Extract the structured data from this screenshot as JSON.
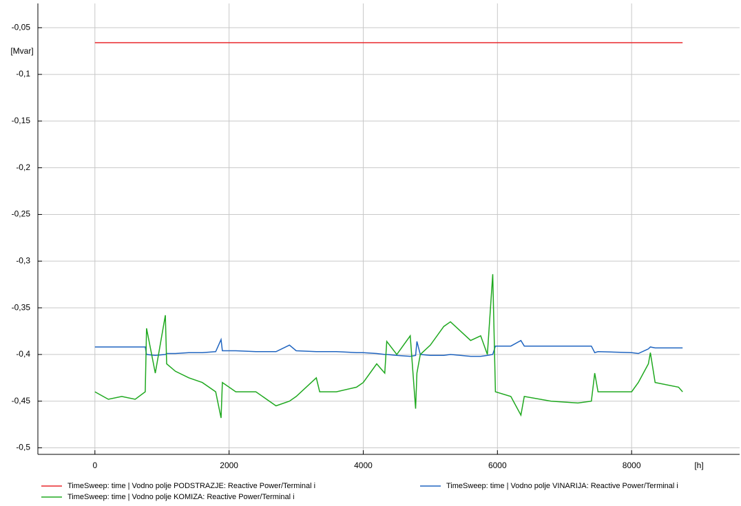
{
  "chart_data": {
    "type": "line",
    "x_label": "[h]",
    "y_label": "[Mvar]",
    "x": [
      0,
      200,
      400,
      600,
      750,
      770,
      900,
      1050,
      1070,
      1200,
      1400,
      1600,
      1800,
      1880,
      1900,
      2100,
      2400,
      2700,
      2900,
      3000,
      3300,
      3350,
      3600,
      3900,
      4000,
      4200,
      4320,
      4350,
      4500,
      4700,
      4780,
      4800,
      4850,
      5000,
      5200,
      5300,
      5600,
      5750,
      5850,
      5930,
      5970,
      6200,
      6350,
      6400,
      6800,
      7200,
      7400,
      7450,
      7500,
      8000,
      8100,
      8250,
      8280,
      8350,
      8700,
      8760
    ],
    "series": [
      {
        "name": "TimeSweep: time | Vodno polje PODSTRAZJE: Reactive Power/Terminal i",
        "color": "#e8262a",
        "values": [
          -0.066,
          -0.066,
          -0.066,
          -0.066,
          -0.066,
          -0.066,
          -0.066,
          -0.066,
          -0.066,
          -0.066,
          -0.066,
          -0.066,
          -0.066,
          -0.066,
          -0.066,
          -0.066,
          -0.066,
          -0.066,
          -0.066,
          -0.066,
          -0.066,
          -0.066,
          -0.066,
          -0.066,
          -0.066,
          -0.066,
          -0.066,
          -0.066,
          -0.066,
          -0.066,
          -0.066,
          -0.066,
          -0.066,
          -0.066,
          -0.066,
          -0.066,
          -0.066,
          -0.066,
          -0.066,
          -0.066,
          -0.066,
          -0.066,
          -0.066,
          -0.066,
          -0.066,
          -0.066,
          -0.066,
          -0.066,
          -0.066,
          -0.066,
          -0.066,
          -0.066,
          -0.066,
          -0.066,
          -0.066,
          -0.066
        ]
      },
      {
        "name": "TimeSweep: time | Vodno polje VINARIJA: Reactive Power/Terminal i",
        "color": "#1f64c0",
        "values": [
          -0.392,
          -0.392,
          -0.392,
          -0.392,
          -0.392,
          -0.4,
          -0.401,
          -0.4,
          -0.399,
          -0.399,
          -0.398,
          -0.398,
          -0.397,
          -0.384,
          -0.396,
          -0.396,
          -0.397,
          -0.397,
          -0.39,
          -0.396,
          -0.397,
          -0.397,
          -0.397,
          -0.398,
          -0.398,
          -0.399,
          -0.4,
          -0.4,
          -0.401,
          -0.402,
          -0.401,
          -0.386,
          -0.4,
          -0.401,
          -0.401,
          -0.4,
          -0.402,
          -0.402,
          -0.401,
          -0.4,
          -0.391,
          -0.391,
          -0.385,
          -0.391,
          -0.391,
          -0.391,
          -0.391,
          -0.398,
          -0.397,
          -0.398,
          -0.399,
          -0.394,
          -0.392,
          -0.393,
          -0.393,
          -0.393
        ]
      },
      {
        "name": "TimeSweep: time | Vodno polje KOMIZA: Reactive Power/Terminal i",
        "color": "#1ea81e",
        "values": [
          -0.44,
          -0.448,
          -0.445,
          -0.448,
          -0.44,
          -0.372,
          -0.42,
          -0.358,
          -0.41,
          -0.418,
          -0.425,
          -0.43,
          -0.44,
          -0.468,
          -0.43,
          -0.44,
          -0.44,
          -0.455,
          -0.45,
          -0.445,
          -0.425,
          -0.44,
          -0.44,
          -0.435,
          -0.43,
          -0.41,
          -0.42,
          -0.386,
          -0.4,
          -0.38,
          -0.458,
          -0.42,
          -0.4,
          -0.39,
          -0.37,
          -0.365,
          -0.385,
          -0.38,
          -0.4,
          -0.314,
          -0.44,
          -0.445,
          -0.465,
          -0.445,
          -0.45,
          -0.452,
          -0.45,
          -0.42,
          -0.44,
          -0.44,
          -0.43,
          -0.41,
          -0.398,
          -0.43,
          -0.435,
          -0.44
        ]
      }
    ],
    "xlim": [
      -850,
      9610
    ],
    "ylim": [
      -0.507,
      -0.024
    ],
    "xticks": [
      0,
      2000,
      4000,
      6000,
      8000
    ],
    "yticks": [
      {
        "value": -0.05,
        "label": "-0,05"
      },
      {
        "value": -0.1,
        "label": "-0,1"
      },
      {
        "value": -0.15,
        "label": "-0,15"
      },
      {
        "value": -0.2,
        "label": "-0,2"
      },
      {
        "value": -0.25,
        "label": "-0,25"
      },
      {
        "value": -0.3,
        "label": "-0,3"
      },
      {
        "value": -0.35,
        "label": "-0,35"
      },
      {
        "value": -0.4,
        "label": "-0,4"
      },
      {
        "value": -0.45,
        "label": "-0,45"
      },
      {
        "value": -0.5,
        "label": "-0,5"
      }
    ],
    "grid": true
  }
}
